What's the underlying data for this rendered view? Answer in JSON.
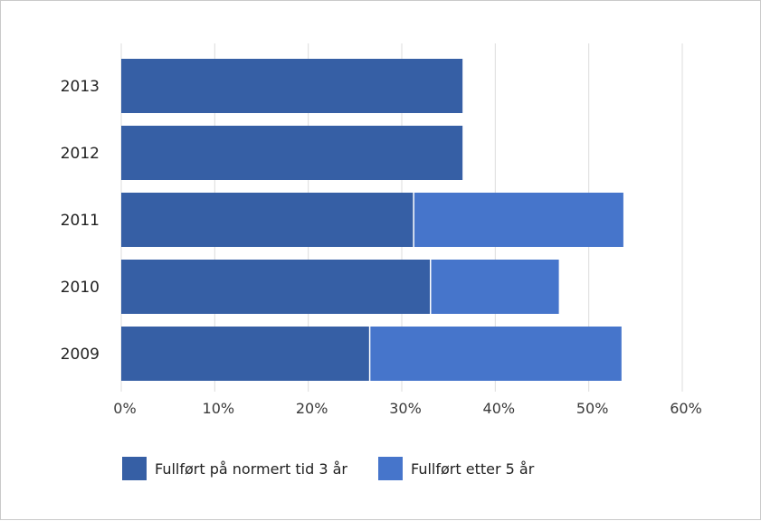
{
  "chart_data": {
    "type": "bar",
    "orientation": "horizontal",
    "stacked": true,
    "categories": [
      "2013",
      "2012",
      "2011",
      "2010",
      "2009"
    ],
    "series": [
      {
        "name": "Fullført på normert tid 3 år",
        "color": "#365fa5",
        "values": [
          36.5,
          36.5,
          31.2,
          33.0,
          26.5
        ]
      },
      {
        "name": "Fullført etter 5 år",
        "color": "#4675cb",
        "values": [
          0,
          0,
          22.5,
          13.8,
          27.0
        ]
      }
    ],
    "xlim": [
      0,
      60
    ],
    "xticks": [
      0,
      10,
      20,
      30,
      40,
      50,
      60
    ],
    "xtick_labels": [
      "0%",
      "10%",
      "20%",
      "30%",
      "40%",
      "50%",
      "60%"
    ],
    "grid": "vertical",
    "legend_position": "bottom"
  }
}
